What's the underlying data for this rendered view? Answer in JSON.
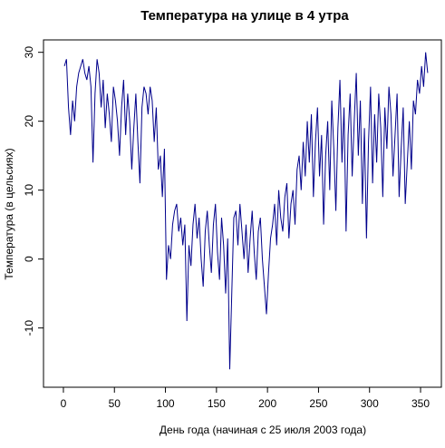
{
  "chart_data": {
    "type": "line",
    "title": "Температура на улице в 4 утра",
    "x_label": "День года (начиная с 25 июля 2003 года)",
    "y_label": "Температура (в цельсиях)",
    "x": [
      1,
      3,
      5,
      7,
      9,
      11,
      13,
      15,
      17,
      19,
      21,
      23,
      25,
      27,
      29,
      31,
      33,
      35,
      37,
      39,
      41,
      43,
      45,
      47,
      49,
      51,
      53,
      55,
      57,
      59,
      61,
      63,
      65,
      67,
      69,
      71,
      73,
      75,
      77,
      79,
      81,
      83,
      85,
      87,
      89,
      91,
      93,
      95,
      97,
      99,
      101,
      103,
      105,
      107,
      109,
      111,
      113,
      115,
      117,
      119,
      121,
      123,
      125,
      127,
      129,
      131,
      133,
      135,
      137,
      139,
      141,
      143,
      145,
      147,
      149,
      151,
      153,
      155,
      157,
      159,
      161,
      163,
      165,
      167,
      169,
      171,
      173,
      175,
      177,
      179,
      181,
      183,
      185,
      187,
      189,
      191,
      193,
      195,
      197,
      199,
      201,
      203,
      205,
      207,
      209,
      211,
      213,
      215,
      217,
      219,
      221,
      223,
      225,
      227,
      229,
      231,
      233,
      235,
      237,
      239,
      241,
      243,
      245,
      247,
      249,
      251,
      253,
      255,
      257,
      259,
      261,
      263,
      265,
      267,
      269,
      271,
      273,
      275,
      277,
      279,
      281,
      283,
      285,
      287,
      289,
      291,
      293,
      295,
      297,
      299,
      301,
      303,
      305,
      307,
      309,
      311,
      313,
      315,
      317,
      319,
      321,
      323,
      325,
      327,
      329,
      331,
      333,
      335,
      337,
      339,
      341,
      343,
      345,
      347,
      349,
      351,
      353,
      355,
      357
    ],
    "series": [
      {
        "color": "#00008b",
        "values": [
          28,
          29,
          22,
          18,
          23,
          20,
          25,
          27,
          28,
          29,
          27,
          26,
          28,
          25,
          14,
          24,
          29,
          27,
          22,
          26,
          19,
          24,
          21,
          17,
          25,
          23,
          20,
          15,
          22,
          26,
          18,
          24,
          20,
          13,
          19,
          24,
          17,
          11,
          22,
          25,
          24,
          21,
          25,
          23,
          17,
          22,
          13,
          15,
          9,
          16,
          -3,
          2,
          0,
          5,
          7,
          8,
          4,
          6,
          2,
          5,
          -9,
          2,
          -1,
          5,
          8,
          3,
          6,
          0,
          -4,
          4,
          7,
          2,
          -2,
          5,
          8,
          1,
          -3,
          6,
          2,
          -5,
          3,
          -16,
          -5,
          6,
          7,
          2,
          8,
          4,
          0,
          5,
          -2,
          3,
          7,
          1,
          -3,
          4,
          6,
          0,
          -4,
          -8,
          -2,
          3,
          5,
          8,
          2,
          10,
          6,
          4,
          9,
          11,
          3,
          8,
          10,
          5,
          13,
          15,
          10,
          17,
          12,
          20,
          14,
          21,
          9,
          17,
          22,
          12,
          18,
          5,
          15,
          20,
          10,
          23,
          16,
          7,
          19,
          26,
          14,
          22,
          4,
          18,
          24,
          12,
          20,
          27,
          15,
          23,
          8,
          19,
          3,
          17,
          25,
          11,
          21,
          14,
          24,
          19,
          9,
          22,
          16,
          25,
          21,
          12,
          18,
          24,
          9,
          16,
          22,
          8,
          14,
          20,
          13,
          23,
          21,
          26,
          24,
          28,
          25,
          30,
          27
        ]
      }
    ],
    "xlim": [
      -19.5,
      370.4
    ],
    "ylim": [
      -18.6,
      31.8
    ],
    "xticks": [
      0,
      50,
      100,
      150,
      200,
      250,
      300,
      350
    ],
    "yticks": [
      -10,
      0,
      10,
      20,
      30
    ]
  }
}
